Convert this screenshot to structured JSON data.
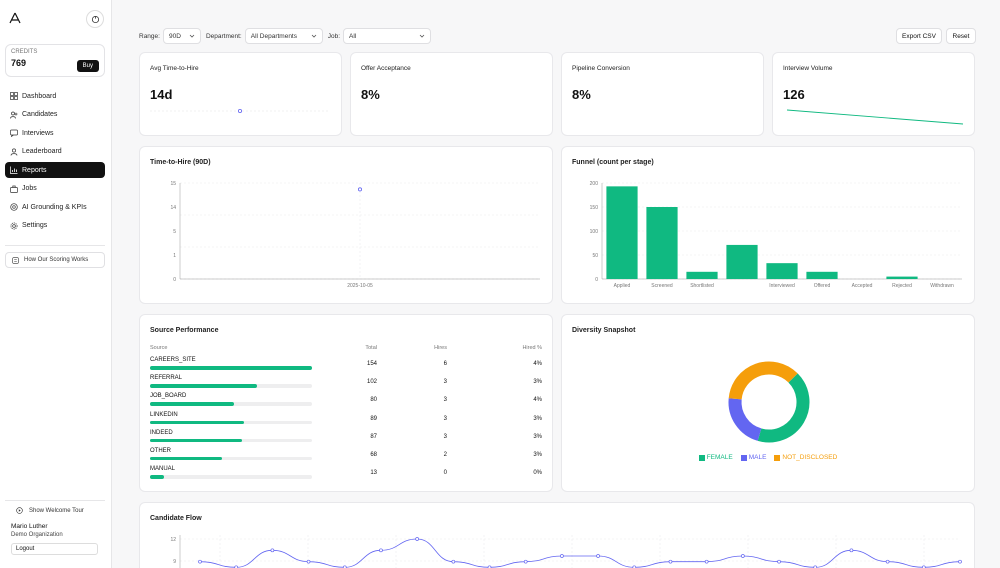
{
  "sidebar": {
    "credits_label": "CREDITS",
    "credits_value": "769",
    "buy_label": "Buy",
    "nav": [
      {
        "label": "Dashboard",
        "icon": "grid-icon"
      },
      {
        "label": "Candidates",
        "icon": "users-icon"
      },
      {
        "label": "Interviews",
        "icon": "chat-icon"
      },
      {
        "label": "Leaderboard",
        "icon": "trophy-icon"
      },
      {
        "label": "Reports",
        "icon": "chart-icon",
        "active": true
      },
      {
        "label": "Jobs",
        "icon": "briefcase-icon"
      },
      {
        "label": "AI Grounding & KPIs",
        "icon": "target-icon"
      },
      {
        "label": "Settings",
        "icon": "gear-icon"
      }
    ],
    "scoring_label": "How Our Scoring Works",
    "welcome_label": "Show Welcome Tour",
    "user_name": "Mario Luther",
    "org_name": "Demo Organization",
    "logout_label": "Logout"
  },
  "filters": {
    "range_label": "Range:",
    "range_value": "90D",
    "dept_label": "Department:",
    "dept_value": "All Departments",
    "job_label": "Job:",
    "job_value": "All",
    "export_label": "Export CSV",
    "reset_label": "Reset"
  },
  "kpis": [
    {
      "title": "Avg Time-to-Hire",
      "value": "14d"
    },
    {
      "title": "Offer Acceptance",
      "value": "8%"
    },
    {
      "title": "Pipeline Conversion",
      "value": "8%"
    },
    {
      "title": "Interview Volume",
      "value": "126"
    }
  ],
  "tth": {
    "title": "Time-to-Hire (90D)",
    "yticks": [
      "15",
      "14",
      "5",
      "1",
      "0"
    ],
    "xlabel_date": "2025-10-05"
  },
  "funnel": {
    "title": "Funnel (count per stage)",
    "yticks": [
      "200",
      "150",
      "100",
      "50",
      "0"
    ]
  },
  "source": {
    "title": "Source Performance",
    "headers": {
      "source": "Source",
      "total": "Total",
      "hires": "Hires",
      "pct": "Hired %"
    },
    "rows": [
      {
        "name": "CAREERS_SITE",
        "total": "154",
        "hires": "6",
        "pct": "4%"
      },
      {
        "name": "REFERRAL",
        "total": "102",
        "hires": "3",
        "pct": "3%"
      },
      {
        "name": "JOB_BOARD",
        "total": "80",
        "hires": "3",
        "pct": "4%"
      },
      {
        "name": "LINKEDIN",
        "total": "89",
        "hires": "3",
        "pct": "3%"
      },
      {
        "name": "INDEED",
        "total": "87",
        "hires": "3",
        "pct": "3%"
      },
      {
        "name": "OTHER",
        "total": "68",
        "hires": "2",
        "pct": "3%"
      },
      {
        "name": "MANUAL",
        "total": "13",
        "hires": "0",
        "pct": "0%"
      }
    ]
  },
  "diversity": {
    "title": "Diversity Snapshot"
  },
  "flow": {
    "title": "Candidate Flow",
    "yticks": [
      "12",
      "9"
    ]
  },
  "chart_data": [
    {
      "type": "line",
      "title": "Time-to-Hire (90D)",
      "x": [
        "2025-10-05"
      ],
      "series": [
        {
          "values": [
            14
          ]
        }
      ],
      "ylim": [
        0,
        15
      ]
    },
    {
      "type": "bar",
      "title": "Funnel (count per stage)",
      "categories": [
        "Applied",
        "Screened",
        "Shortlisted",
        "",
        "Interviewed",
        "Offered",
        "Accepted",
        "Rejected",
        "Withdrawn"
      ],
      "values": [
        193,
        150,
        15,
        71,
        33,
        15,
        0,
        5,
        0
      ],
      "ylim": [
        0,
        200
      ]
    },
    {
      "type": "pie",
      "title": "Diversity Snapshot",
      "categories": [
        "FEMALE",
        "MALE",
        "NOT_DISCLOSED"
      ],
      "values": [
        42,
        22,
        36
      ],
      "colors": [
        "#10b981",
        "#6366f1",
        "#f59e0b"
      ]
    },
    {
      "type": "line",
      "title": "Candidate Flow",
      "series": [
        {
          "values": [
            9,
            8,
            11,
            9,
            8,
            11,
            13,
            9,
            8,
            9,
            10,
            10,
            8,
            9,
            9,
            10,
            9,
            8,
            11,
            9,
            8,
            9
          ]
        }
      ]
    }
  ]
}
